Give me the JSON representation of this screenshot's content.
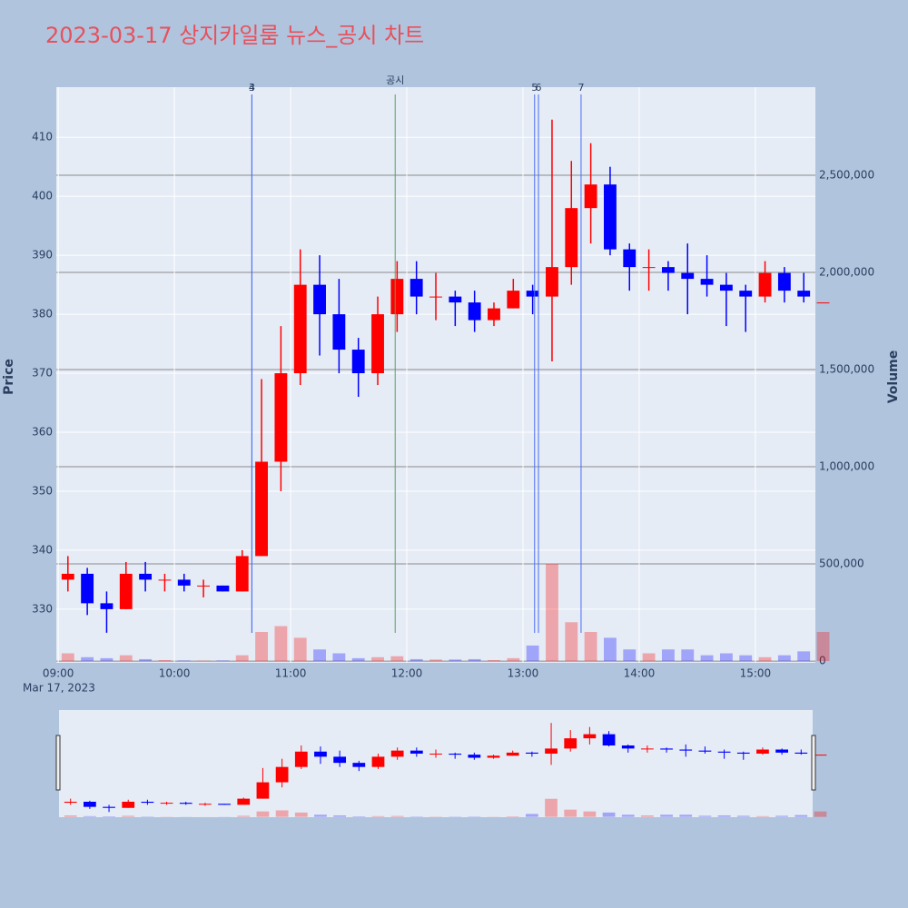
{
  "chart_data": {
    "type": "candlestick",
    "title": "2023-03-17 상지카일룸 뉴스_공시 차트",
    "title_color": "#e8505b",
    "y_label": "Price",
    "y2_label": "Volume",
    "x": [
      "09:00",
      "09:10",
      "09:20",
      "09:30",
      "09:40",
      "09:50",
      "10:00",
      "10:10",
      "10:20",
      "10:30",
      "10:40",
      "10:50",
      "11:00",
      "11:10",
      "11:20",
      "11:30",
      "11:40",
      "11:50",
      "12:00",
      "12:10",
      "12:20",
      "12:30",
      "12:40",
      "12:50",
      "13:00",
      "13:10",
      "13:20",
      "13:30",
      "13:40",
      "13:50",
      "14:00",
      "14:10",
      "14:20",
      "14:30",
      "14:40",
      "14:50",
      "15:00",
      "15:10",
      "15:20",
      "15:30"
    ],
    "open": [
      335,
      336,
      331,
      330,
      336,
      335,
      335,
      334,
      334,
      333,
      339,
      355,
      370,
      385,
      380,
      374,
      370,
      380,
      386,
      383,
      383,
      382,
      379,
      381,
      384,
      383,
      388,
      398,
      402,
      391,
      388,
      388,
      387,
      386,
      385,
      384,
      383,
      387,
      384,
      382
    ],
    "high": [
      339,
      337,
      333,
      338,
      338,
      336,
      336,
      335,
      334,
      340,
      369,
      378,
      391,
      390,
      386,
      376,
      383,
      389,
      389,
      387,
      384,
      384,
      382,
      386,
      385,
      413,
      406,
      409,
      405,
      392,
      391,
      389,
      392,
      390,
      387,
      385,
      389,
      388,
      387,
      382
    ],
    "low": [
      333,
      329,
      326,
      330,
      333,
      333,
      333,
      332,
      333,
      333,
      339,
      350,
      368,
      373,
      370,
      366,
      368,
      377,
      380,
      379,
      378,
      377,
      378,
      381,
      380,
      372,
      385,
      392,
      390,
      384,
      384,
      384,
      380,
      383,
      378,
      377,
      382,
      382,
      382,
      382
    ],
    "close": [
      336,
      331,
      330,
      336,
      335,
      335,
      334,
      334,
      333,
      339,
      355,
      370,
      385,
      380,
      374,
      370,
      380,
      386,
      383,
      383,
      382,
      379,
      381,
      384,
      383,
      388,
      398,
      402,
      391,
      388,
      388,
      387,
      386,
      385,
      384,
      383,
      387,
      384,
      383,
      382
    ],
    "volume": [
      40000,
      20000,
      15000,
      30000,
      10000,
      5000,
      3000,
      2000,
      3000,
      30000,
      150000,
      180000,
      120000,
      60000,
      40000,
      15000,
      20000,
      25000,
      10000,
      8000,
      8000,
      10000,
      5000,
      15000,
      80000,
      500000,
      200000,
      150000,
      120000,
      60000,
      40000,
      60000,
      60000,
      30000,
      40000,
      30000,
      20000,
      30000,
      50000,
      150000
    ],
    "increasing_color": "#ff0000",
    "decreasing_color": "#0000ff",
    "xlim": [
      "08:59",
      "15:31"
    ],
    "xticks": [
      "09:00",
      "10:00",
      "11:00",
      "12:00",
      "13:00",
      "14:00",
      "15:00"
    ],
    "x_sublabel": "Mar 17, 2023",
    "ylim": [
      320.9,
      418.5
    ],
    "yticks": [
      330,
      340,
      350,
      360,
      370,
      380,
      390,
      400,
      410
    ],
    "y2lim": [
      -9000,
      2953000
    ],
    "y2ticks": [
      0,
      {
        "value": 500000,
        "label": "500,000"
      },
      {
        "value": 1000000,
        "label": "1,000,000"
      },
      {
        "value": 1500000,
        "label": "1,500,000"
      },
      {
        "value": 2000000,
        "label": "2,000,000"
      },
      {
        "value": 2500000,
        "label": "2,500,000"
      }
    ],
    "grid": true,
    "annotations": [
      {
        "x": "10:40",
        "label": "3",
        "color": "#4a6cf7"
      },
      {
        "x": "10:40",
        "label": "4",
        "color": "#4a6cf7"
      },
      {
        "x": "11:54",
        "label": "공시",
        "color": "#5aa05a"
      },
      {
        "x": "13:06",
        "label": "5",
        "color": "#4a6cf7"
      },
      {
        "x": "13:08",
        "label": "6",
        "color": "#4a6cf7"
      },
      {
        "x": "13:30",
        "label": "7",
        "color": "#4a6cf7"
      }
    ],
    "range_slider": true
  }
}
